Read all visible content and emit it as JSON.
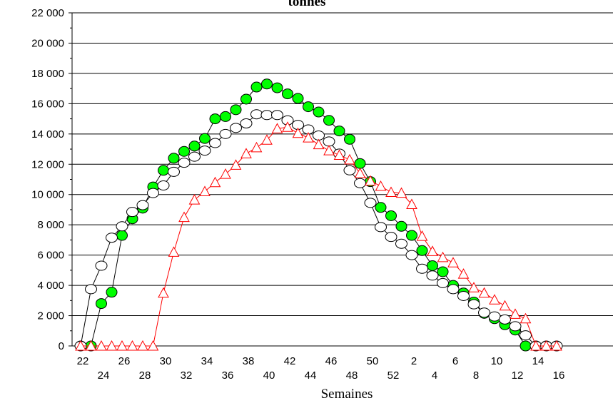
{
  "chart_data": {
    "type": "line",
    "title": "tonnes",
    "xlabel": "Semaines",
    "ylabel": "",
    "ylim": [
      0,
      22000
    ],
    "yticks": [
      "0",
      "2 000",
      "4 000",
      "6 000",
      "8 000",
      "10 000",
      "12 000",
      "14 000",
      "16 000",
      "18 000",
      "20 000",
      "22 000"
    ],
    "grid": "horizontal",
    "legend": "none",
    "categories": [
      "22",
      "23",
      "24",
      "25",
      "26",
      "27",
      "28",
      "29",
      "30",
      "31",
      "32",
      "33",
      "34",
      "35",
      "36",
      "37",
      "38",
      "39",
      "40",
      "41",
      "42",
      "43",
      "44",
      "45",
      "46",
      "47",
      "48",
      "49",
      "50",
      "51",
      "52",
      "1",
      "2",
      "3",
      "4",
      "5",
      "6",
      "7",
      "8",
      "9",
      "10",
      "11",
      "12",
      "13",
      "14",
      "15",
      "16"
    ],
    "x_tick_labels": [
      "22",
      "24",
      "26",
      "28",
      "30",
      "32",
      "34",
      "36",
      "38",
      "40",
      "42",
      "44",
      "46",
      "48",
      "50",
      "52",
      "2",
      "4",
      "6",
      "8",
      "10",
      "12",
      "14",
      "16"
    ],
    "series": [
      {
        "marker": "circle-filled",
        "color": "#00ff00",
        "values": [
          0,
          0,
          2800,
          3550,
          7300,
          8400,
          9100,
          10500,
          11600,
          12400,
          12850,
          13200,
          13700,
          15000,
          15150,
          15600,
          16300,
          17100,
          17300,
          17050,
          16650,
          16350,
          15800,
          15450,
          14900,
          14200,
          13650,
          12050,
          10850,
          9150,
          8600,
          7900,
          7300,
          6300,
          5300,
          4900,
          4000,
          3500,
          2900,
          2150,
          1800,
          1400,
          1050,
          0,
          0,
          0,
          0
        ]
      },
      {
        "marker": "circle-open",
        "color": "#000000",
        "values": [
          0,
          3750,
          5300,
          7150,
          7900,
          8850,
          9300,
          10100,
          10600,
          11500,
          12100,
          12500,
          12900,
          13400,
          14000,
          14400,
          14700,
          15300,
          15250,
          15250,
          14900,
          14600,
          14300,
          13900,
          13500,
          12700,
          11600,
          10750,
          9450,
          7850,
          7200,
          6750,
          6000,
          5100,
          4650,
          4150,
          3750,
          3300,
          2750,
          2200,
          1950,
          1750,
          1300,
          700,
          0,
          0,
          0
        ]
      },
      {
        "marker": "triangle-open",
        "color": "#ff0000",
        "values": [
          0,
          0,
          0,
          0,
          0,
          0,
          0,
          0,
          3500,
          6200,
          8500,
          9650,
          10200,
          10800,
          11350,
          11950,
          12700,
          13100,
          13600,
          14350,
          14450,
          14050,
          13750,
          13300,
          12900,
          12600,
          12300,
          11400,
          10900,
          10550,
          10150,
          10100,
          9350,
          7250,
          6250,
          5850,
          5500,
          4750,
          3850,
          3500,
          3050,
          2650,
          2100,
          1800,
          0,
          0,
          0
        ]
      }
    ]
  }
}
